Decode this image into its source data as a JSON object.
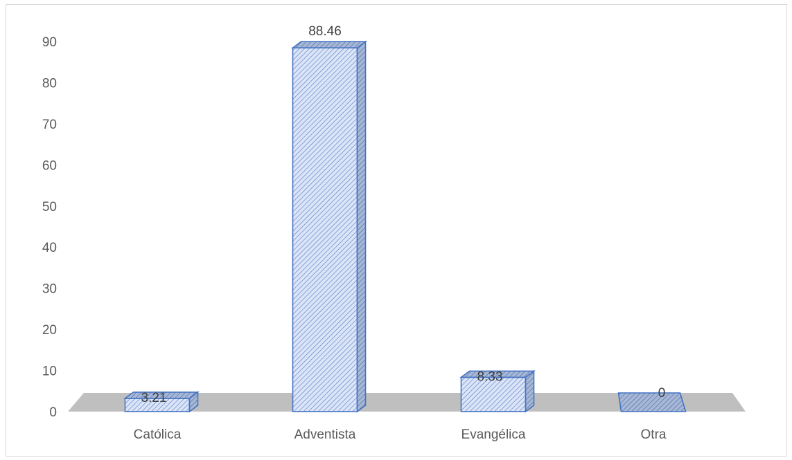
{
  "chart_data": {
    "type": "bar",
    "categories": [
      "Católica",
      "Adventista",
      "Evangélica",
      "Otra"
    ],
    "values": [
      3.21,
      88.46,
      8.33,
      0
    ],
    "data_labels": [
      "3.21",
      "88.46",
      "8.33",
      "0"
    ],
    "y_ticks": [
      "0",
      "10",
      "20",
      "30",
      "40",
      "50",
      "60",
      "70",
      "80",
      "90"
    ],
    "ylim": [
      0,
      90
    ],
    "grid": false,
    "legend": "none",
    "style": "3d-column-hatched"
  },
  "colors": {
    "bar_fill": "#dbe5f7",
    "bar_stroke": "#4472c4",
    "bar_top": "#9fb3d6",
    "floor": "#bfbfbf",
    "text": "#595959"
  }
}
